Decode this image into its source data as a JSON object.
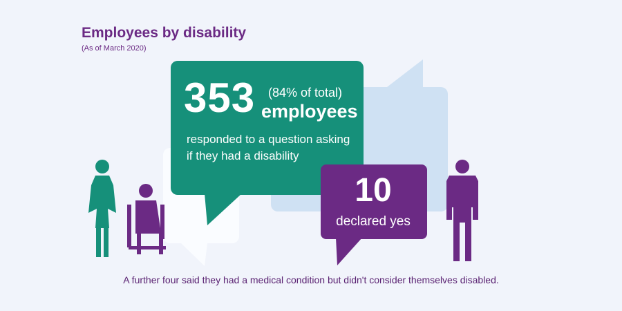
{
  "header": {
    "title": "Employees by disability",
    "subtitle": "(As of March 2020)"
  },
  "responded": {
    "count": "353",
    "share": "(84% of total)",
    "unit": "employees",
    "description": "responded to a question asking if they had a disability"
  },
  "declared": {
    "count": "10",
    "label": "declared yes"
  },
  "footnote": "A further four said they had a medical condition but didn't consider themselves disabled.",
  "icons": [
    "woman-figure-icon",
    "wheelchair-user-icon",
    "man-figure-icon"
  ],
  "colors": {
    "purple": "#6b2a84",
    "green": "#16907a",
    "light_blue": "#c9dcf1",
    "background": "#f1f4fb"
  }
}
